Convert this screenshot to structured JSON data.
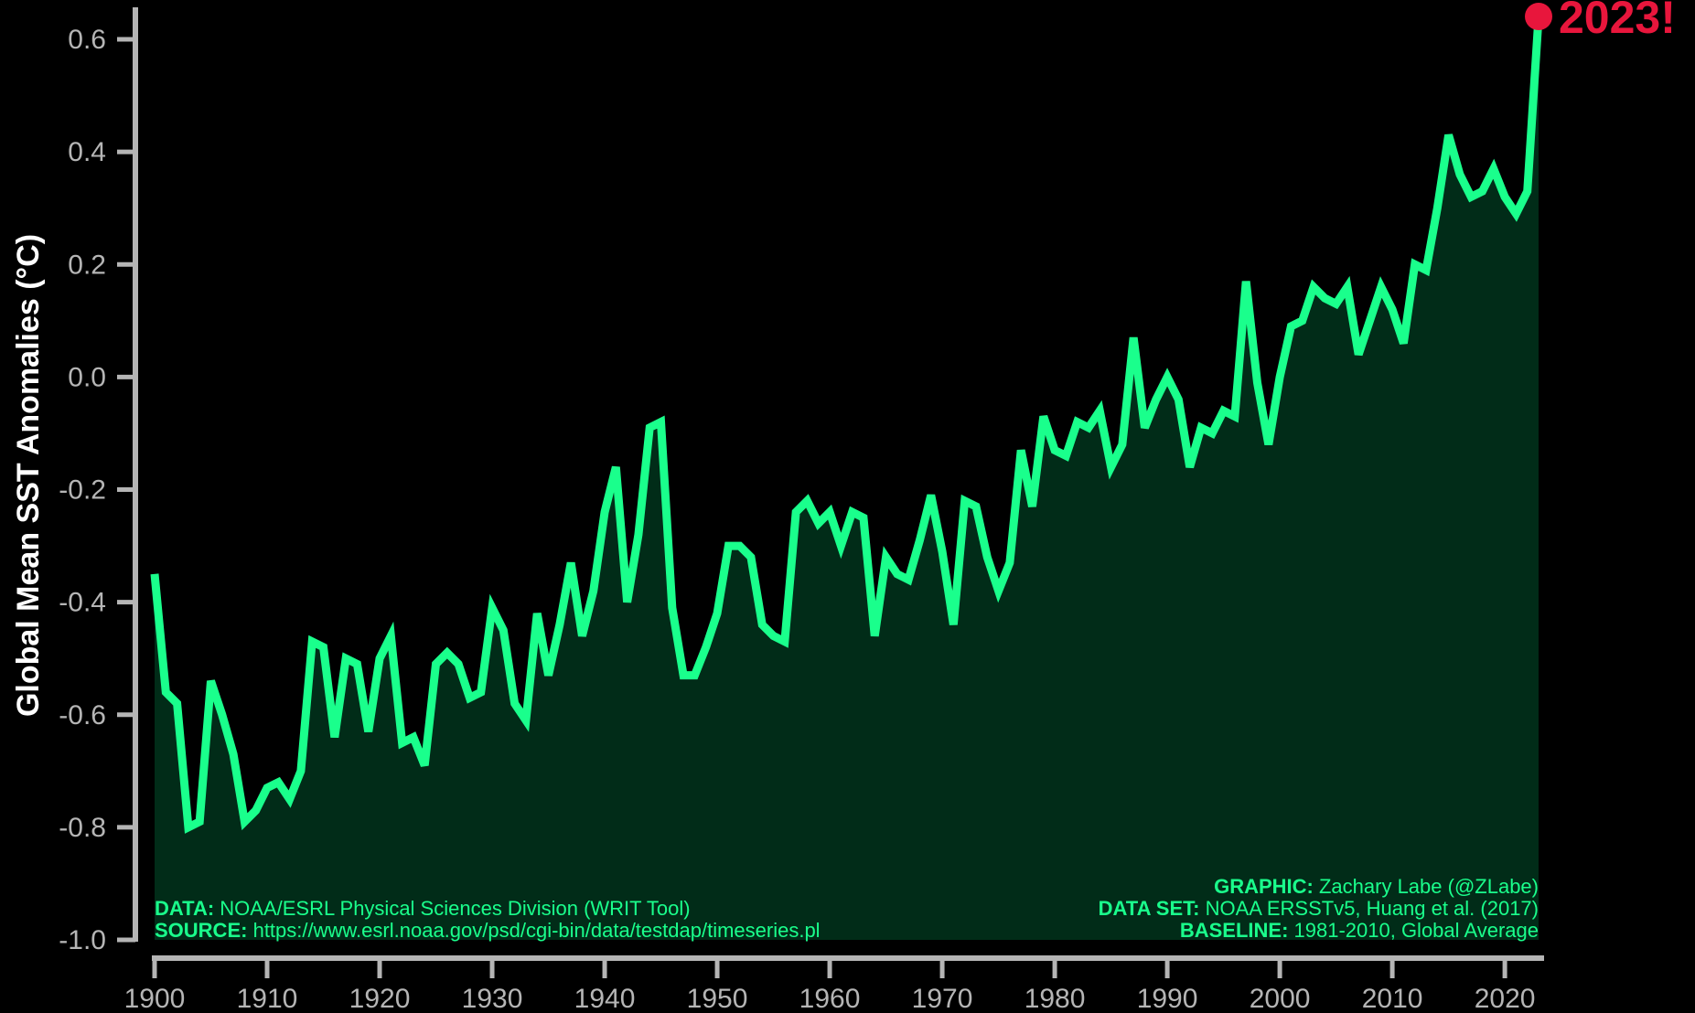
{
  "chart_data": {
    "type": "area",
    "ylabel": "Global Mean SST Anomalies (°C)",
    "xlabel": "",
    "title": "",
    "xlim": [
      1900,
      2023
    ],
    "ylim": [
      -1.0,
      0.6
    ],
    "x_ticks": [
      "1900",
      "1910",
      "1920",
      "1930",
      "1940",
      "1950",
      "1960",
      "1970",
      "1980",
      "1990",
      "2000",
      "2010",
      "2020"
    ],
    "y_ticks": [
      "0.6",
      "0.4",
      "0.2",
      "0.0",
      "-0.2",
      "-0.4",
      "-0.6",
      "-0.8",
      "-1.0"
    ],
    "grid": false,
    "colors": {
      "line": "#1aff8c",
      "fill": "#012c18",
      "highlight": "#e8163c",
      "axis": "#b5b5b5",
      "background": "#000000"
    },
    "highlight": {
      "x": 2023,
      "y": 0.64,
      "label": "2023!"
    },
    "series": [
      {
        "x": [
          1900,
          1901,
          1902,
          1903,
          1904,
          1905,
          1906,
          1907,
          1908,
          1909,
          1910,
          1911,
          1912,
          1913,
          1914,
          1915,
          1916,
          1917,
          1918,
          1919,
          1920,
          1921,
          1922,
          1923,
          1924,
          1925,
          1926,
          1927,
          1928,
          1929,
          1930,
          1931,
          1932,
          1933,
          1934,
          1935,
          1936,
          1937,
          1938,
          1939,
          1940,
          1941,
          1942,
          1943,
          1944,
          1945,
          1946,
          1947,
          1948,
          1949,
          1950,
          1951,
          1952,
          1953,
          1954,
          1955,
          1956,
          1957,
          1958,
          1959,
          1960,
          1961,
          1962,
          1963,
          1964,
          1965,
          1966,
          1967,
          1968,
          1969,
          1970,
          1971,
          1972,
          1973,
          1974,
          1975,
          1976,
          1977,
          1978,
          1979,
          1980,
          1981,
          1982,
          1983,
          1984,
          1985,
          1986,
          1987,
          1988,
          1989,
          1990,
          1991,
          1992,
          1993,
          1994,
          1995,
          1996,
          1997,
          1998,
          1999,
          2000,
          2001,
          2002,
          2003,
          2004,
          2005,
          2006,
          2007,
          2008,
          2009,
          2010,
          2011,
          2012,
          2013,
          2014,
          2015,
          2016,
          2017,
          2018,
          2019,
          2020,
          2021,
          2022,
          2023
        ],
        "values": [
          -0.35,
          -0.56,
          -0.58,
          -0.8,
          -0.79,
          -0.54,
          -0.6,
          -0.67,
          -0.79,
          -0.77,
          -0.73,
          -0.72,
          -0.75,
          -0.7,
          -0.47,
          -0.48,
          -0.64,
          -0.5,
          -0.51,
          -0.63,
          -0.5,
          -0.46,
          -0.65,
          -0.64,
          -0.69,
          -0.51,
          -0.49,
          -0.51,
          -0.57,
          -0.56,
          -0.41,
          -0.45,
          -0.58,
          -0.61,
          -0.42,
          -0.53,
          -0.44,
          -0.33,
          -0.46,
          -0.38,
          -0.24,
          -0.16,
          -0.4,
          -0.28,
          -0.09,
          -0.08,
          -0.41,
          -0.53,
          -0.53,
          -0.48,
          -0.42,
          -0.3,
          -0.3,
          -0.32,
          -0.44,
          -0.46,
          -0.47,
          -0.24,
          -0.22,
          -0.26,
          -0.24,
          -0.3,
          -0.24,
          -0.25,
          -0.46,
          -0.32,
          -0.35,
          -0.36,
          -0.29,
          -0.21,
          -0.31,
          -0.44,
          -0.22,
          -0.23,
          -0.32,
          -0.38,
          -0.33,
          -0.13,
          -0.23,
          -0.07,
          -0.13,
          -0.14,
          -0.08,
          -0.09,
          -0.06,
          -0.16,
          -0.12,
          0.07,
          -0.09,
          -0.04,
          0.0,
          -0.04,
          -0.16,
          -0.09,
          -0.1,
          -0.06,
          -0.07,
          0.17,
          -0.01,
          -0.12,
          0.0,
          0.09,
          0.1,
          0.16,
          0.14,
          0.13,
          0.16,
          0.04,
          0.1,
          0.16,
          0.12,
          0.06,
          0.2,
          0.19,
          0.3,
          0.43,
          0.36,
          0.32,
          0.33,
          0.37,
          0.32,
          0.29,
          0.33,
          0.64
        ]
      }
    ]
  },
  "credits": {
    "left": [
      {
        "key": "DATA:",
        "value": "NOAA/ESRL Physical Sciences Division (WRIT Tool)"
      },
      {
        "key": "SOURCE:",
        "value": "https://www.esrl.noaa.gov/psd/cgi-bin/data/testdap/timeseries.pl"
      }
    ],
    "right": [
      {
        "key": "GRAPHIC:",
        "value": "Zachary Labe (@ZLabe)"
      },
      {
        "key": "DATA SET:",
        "value": "NOAA ERSSTv5, Huang et al. (2017)"
      },
      {
        "key": "BASELINE:",
        "value": "1981-2010, Global Average"
      }
    ]
  }
}
